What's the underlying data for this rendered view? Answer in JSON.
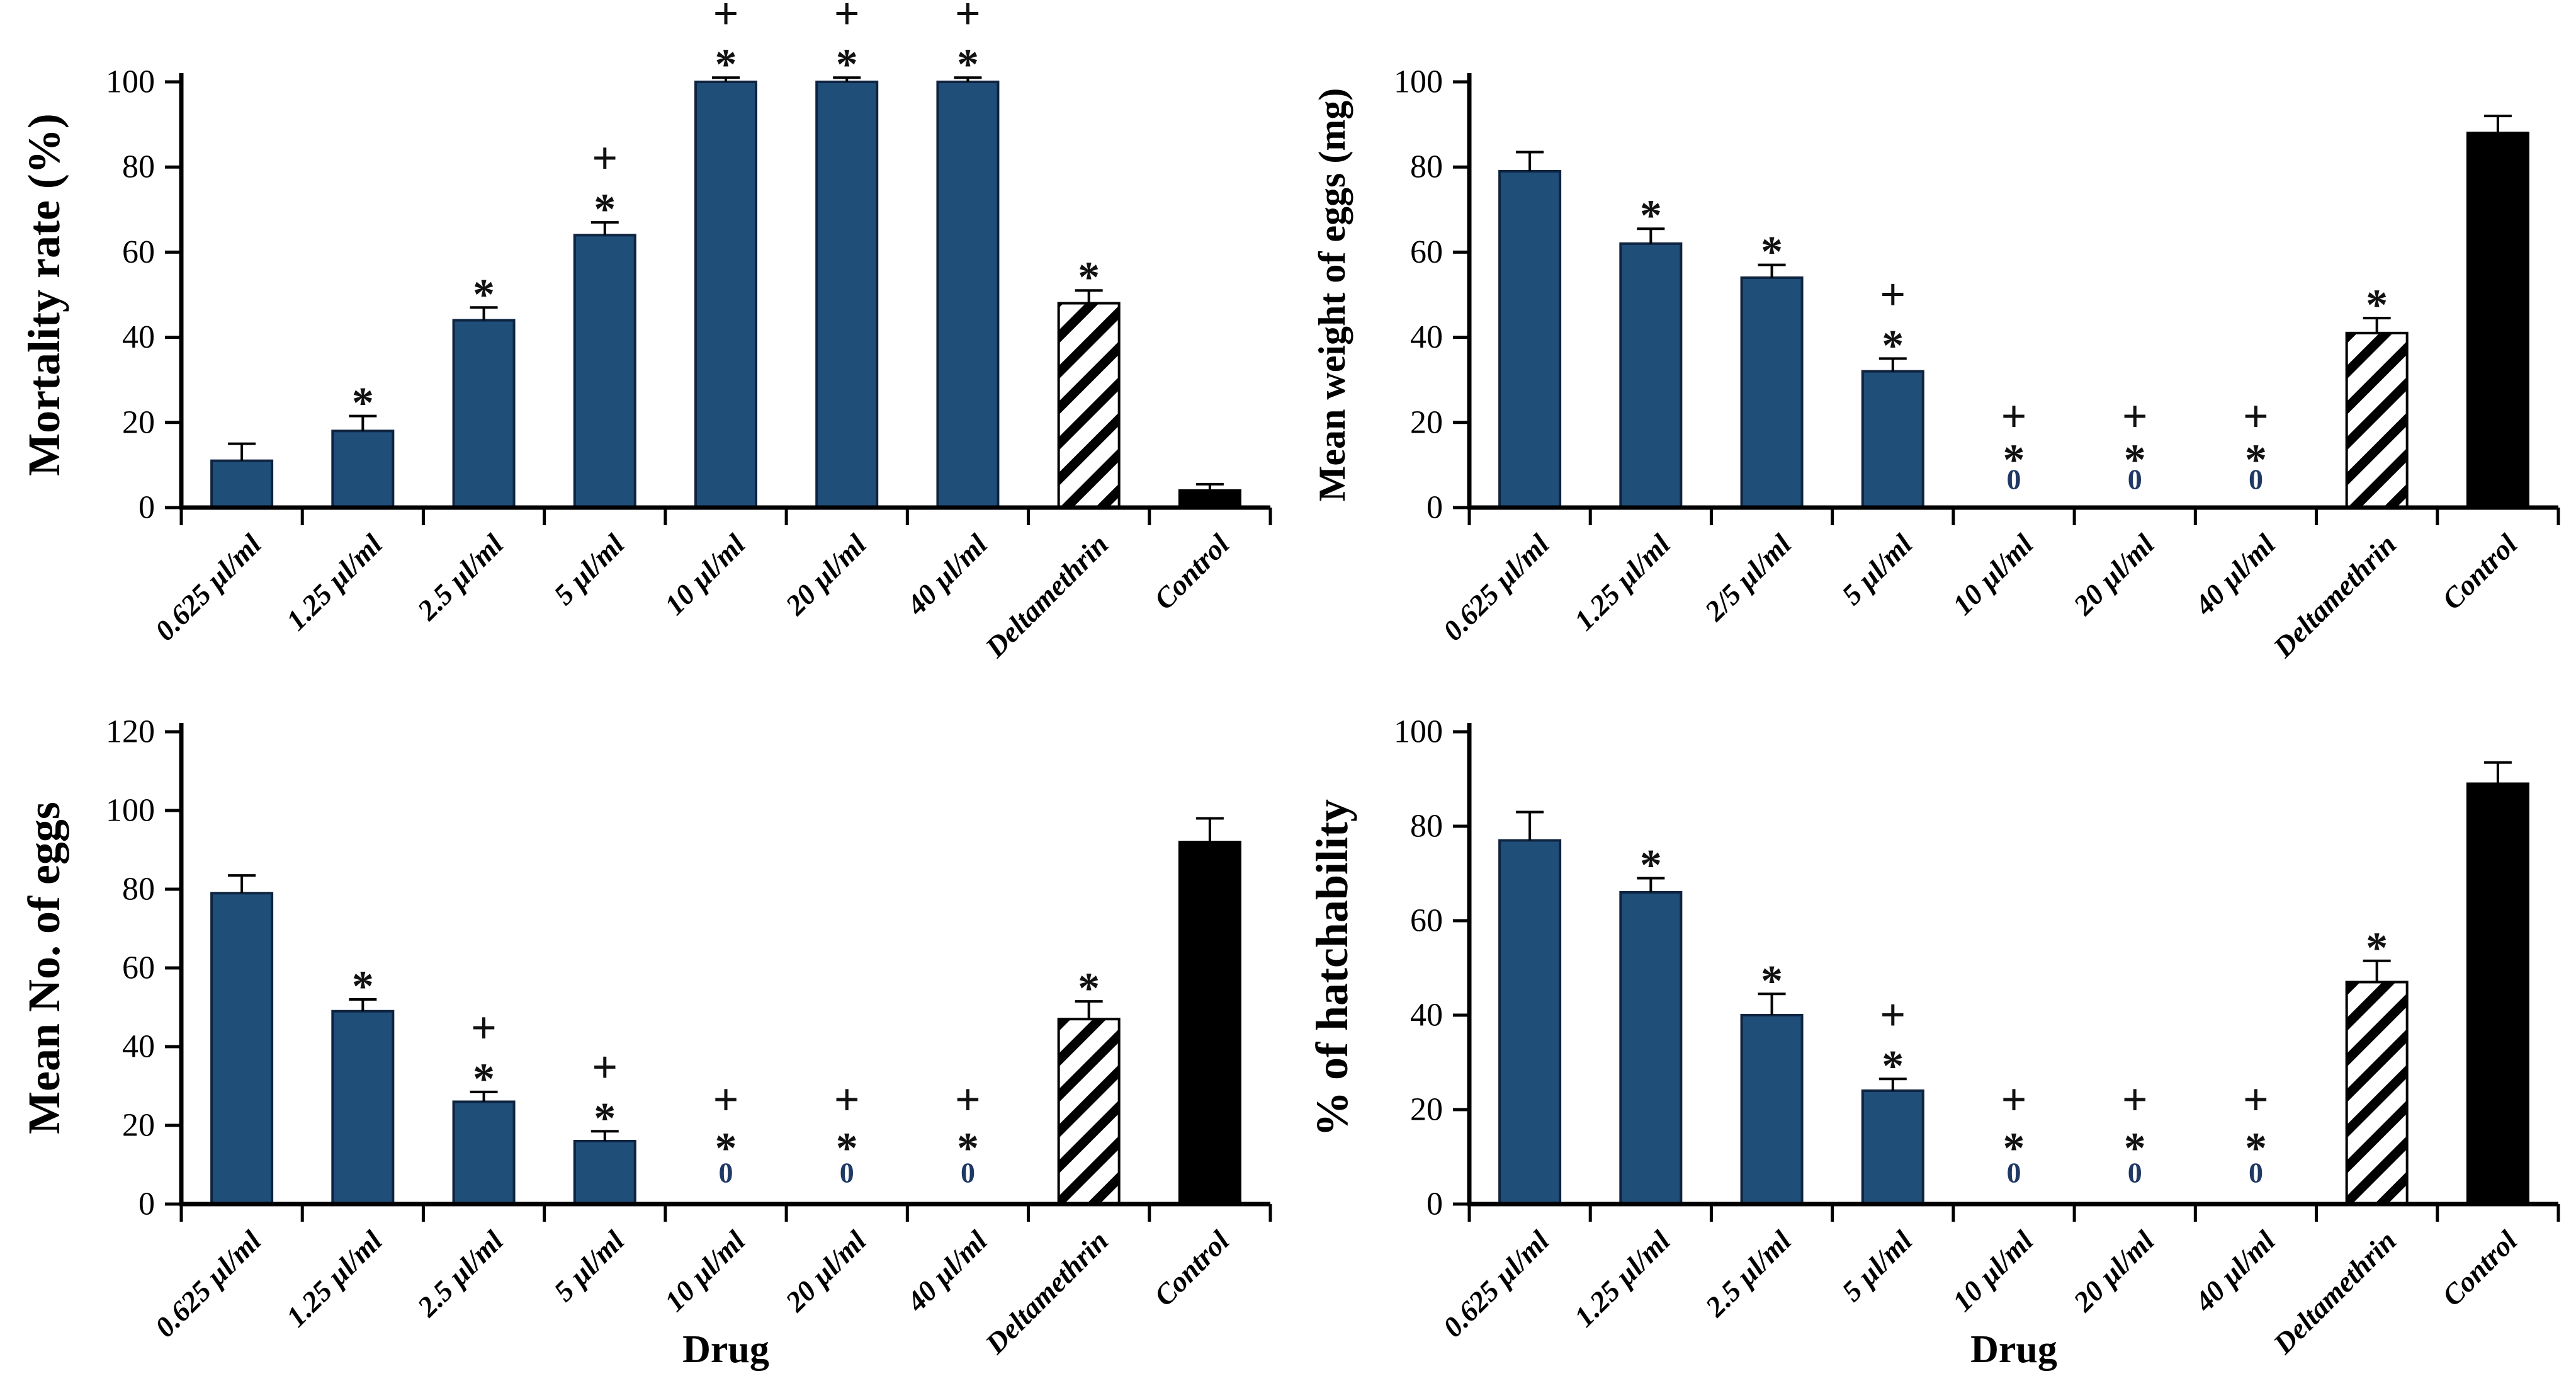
{
  "figure": {
    "background": "#ffffff",
    "colors": {
      "bar_fill": "#1F4E79",
      "bar_stroke": "#0F2440",
      "control_fill": "#000000",
      "hatch_stroke": "#000000",
      "axis": "#000000",
      "error_bar": "#000000",
      "symbol": "#111111",
      "zero_symbol": "#1F3864"
    }
  },
  "chart_data": [
    {
      "id": "mortality-rate",
      "type": "bar",
      "title": "",
      "ylabel": "Mortality rate (%)",
      "xlabel": "",
      "ylim": [
        0,
        100
      ],
      "yticks": [
        0,
        20,
        40,
        60,
        80,
        100
      ],
      "grid": "off",
      "legend": "none",
      "categories": [
        "0.625 µl/ml",
        "1.25 µl/ml",
        "2.5 µl/ml",
        "5 µl/ml",
        "10 µl/ml",
        "20 µl/ml",
        "40 µl/ml",
        "Deltamethrin",
        "Control"
      ],
      "values": [
        11,
        18,
        44,
        64,
        100,
        100,
        100,
        48,
        4
      ],
      "errors": [
        4,
        3.5,
        3,
        3,
        1,
        1,
        1,
        3,
        1.5
      ],
      "annotations": [
        "",
        "*",
        "*",
        "+*",
        "+*",
        "+*",
        "+*",
        "*",
        ""
      ],
      "bar_styles": [
        "solid",
        "solid",
        "solid",
        "solid",
        "solid",
        "solid",
        "solid",
        "hatched",
        "black"
      ]
    },
    {
      "id": "mean-weight-of-eggs",
      "type": "bar",
      "title": "",
      "ylabel": "Mean weight of eggs (mg)",
      "xlabel": "",
      "ylim": [
        0,
        100
      ],
      "yticks": [
        0,
        20,
        40,
        60,
        80,
        100
      ],
      "grid": "off",
      "legend": "none",
      "categories": [
        "0.625 µl/ml",
        "1.25 µl/ml",
        "2/5 µl/ml",
        "5 µl/ml",
        "10 µl/ml",
        "20 µl/ml",
        "40 µl/ml",
        "Deltamethrin",
        "Control"
      ],
      "values": [
        79,
        62,
        54,
        32,
        0,
        0,
        0,
        41,
        88
      ],
      "errors": [
        4.5,
        3.5,
        3,
        3,
        0,
        0,
        0,
        3.5,
        4
      ],
      "annotations": [
        "",
        "*",
        "*",
        "+*",
        "+*0",
        "+*0",
        "+*0",
        "*",
        ""
      ],
      "bar_styles": [
        "solid",
        "solid",
        "solid",
        "solid",
        "solid",
        "solid",
        "solid",
        "hatched",
        "black"
      ]
    },
    {
      "id": "mean-no-of-eggs",
      "type": "bar",
      "title": "",
      "ylabel": "Mean No. of eggs",
      "xlabel": "Drug",
      "ylim": [
        0,
        120
      ],
      "yticks": [
        0,
        20,
        40,
        60,
        80,
        100,
        120
      ],
      "grid": "off",
      "legend": "none",
      "categories": [
        "0.625 µl/ml",
        "1.25 µl/ml",
        "2.5 µl/ml",
        "5 µl/ml",
        "10 µl/ml",
        "20 µl/ml",
        "40 µl/ml",
        "Deltamethrin",
        "Control"
      ],
      "values": [
        79,
        49,
        26,
        16,
        0,
        0,
        0,
        47,
        92
      ],
      "errors": [
        4.5,
        3,
        2.5,
        2.5,
        0,
        0,
        0,
        4.5,
        6
      ],
      "annotations": [
        "",
        "*",
        "+*",
        "+*",
        "+*0",
        "+*0",
        "+*0",
        "*",
        ""
      ],
      "bar_styles": [
        "solid",
        "solid",
        "solid",
        "solid",
        "solid",
        "solid",
        "solid",
        "hatched",
        "black"
      ]
    },
    {
      "id": "percent-hatchability",
      "type": "bar",
      "title": "",
      "ylabel": "% of hatchability",
      "xlabel": "Drug",
      "ylim": [
        0,
        100
      ],
      "yticks": [
        0,
        20,
        40,
        60,
        80,
        100
      ],
      "grid": "off",
      "legend": "none",
      "categories": [
        "0.625 µl/ml",
        "1.25 µl/ml",
        "2.5 µl/ml",
        "5 µl/ml",
        "10 µl/ml",
        "20 µl/ml",
        "40 µl/ml",
        "Deltamethrin",
        "Control"
      ],
      "values": [
        77,
        66,
        40,
        24,
        0,
        0,
        0,
        47,
        89
      ],
      "errors": [
        6,
        3,
        4.5,
        2.5,
        0,
        0,
        0,
        4.5,
        4.5
      ],
      "annotations": [
        "",
        "*",
        "*",
        "+*",
        "+*0",
        "+*0",
        "+*0",
        "*",
        ""
      ],
      "bar_styles": [
        "solid",
        "solid",
        "solid",
        "solid",
        "solid",
        "solid",
        "solid",
        "hatched",
        "black"
      ]
    }
  ]
}
